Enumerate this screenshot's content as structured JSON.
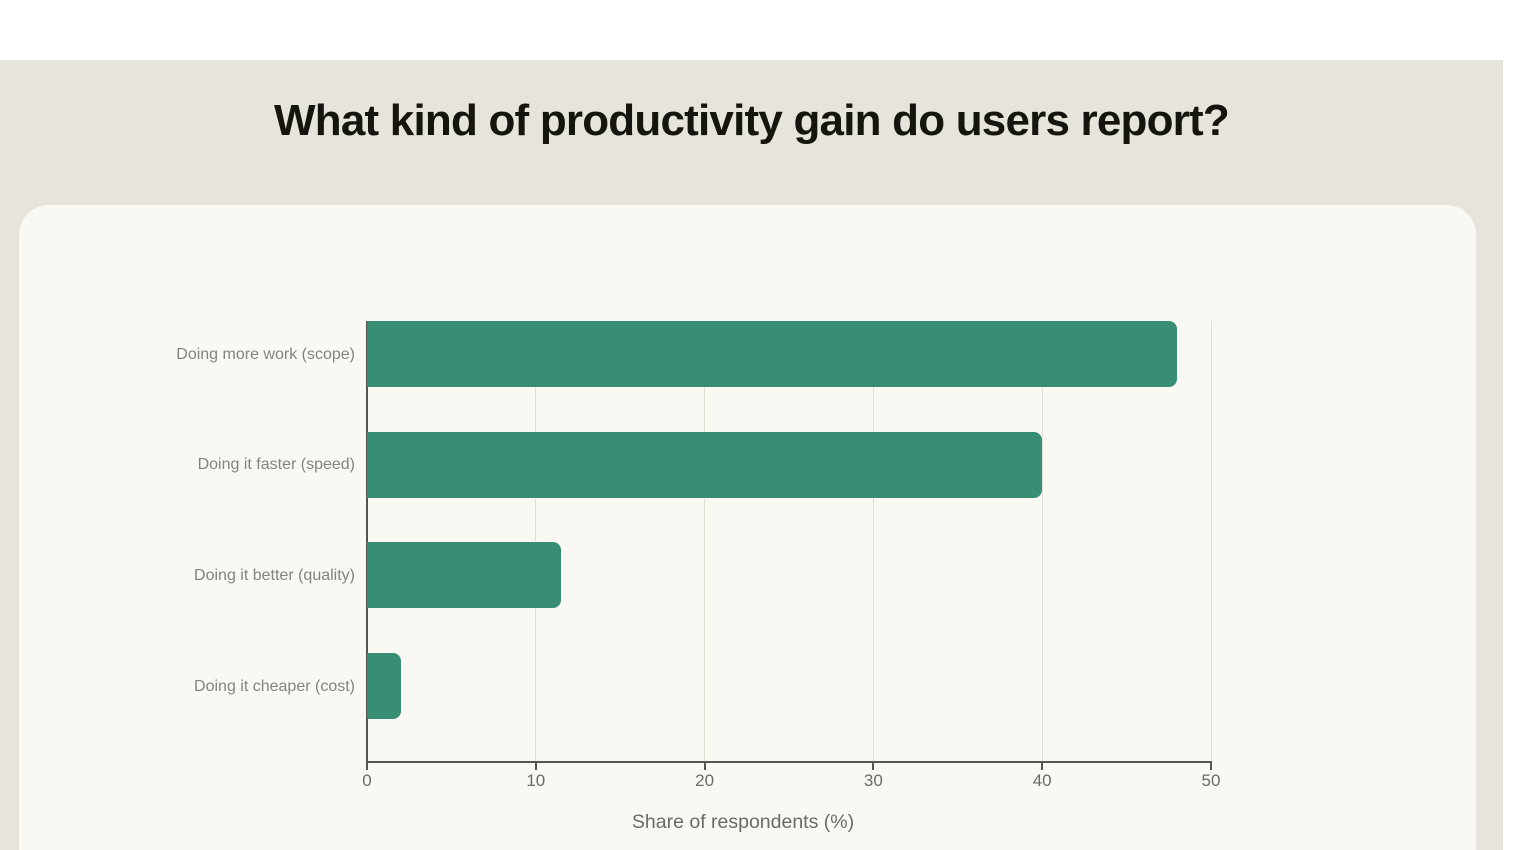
{
  "page": {
    "title": "What kind of productivity gain do users report?"
  },
  "chart_data": {
    "type": "bar",
    "orientation": "horizontal",
    "title": "What kind of productivity gain do users report?",
    "categories": [
      "Doing more work (scope)",
      "Doing it faster (speed)",
      "Doing it better (quality)",
      "Doing it cheaper (cost)"
    ],
    "values": [
      48,
      40,
      11.5,
      2
    ],
    "xlabel": "Share of respondents (%)",
    "xlim": [
      0,
      50
    ],
    "xticks": [
      0,
      10,
      20,
      30,
      40,
      50
    ],
    "grid": "vertical-gridlines",
    "legend": "none"
  },
  "colors": {
    "page_background": "#ffffff",
    "panel_background": "#e7e4db",
    "card_background": "#f9f8f2",
    "bar": "#388e74",
    "gridline": "#e3e0d8",
    "axis": "#56544e",
    "tick_label": "#6b6a64",
    "category_label": "#85837d",
    "title_text": "#15140f"
  }
}
